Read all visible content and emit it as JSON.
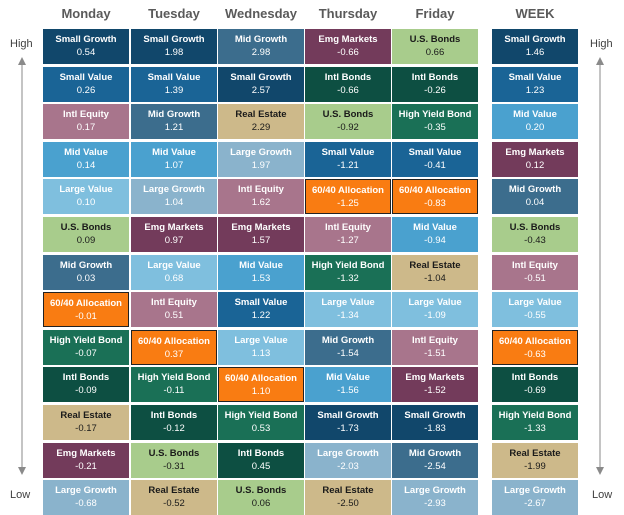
{
  "chart_data": {
    "type": "table",
    "title": "",
    "columns": [
      "Monday",
      "Tuesday",
      "Wednesday",
      "Thursday",
      "Friday",
      "WEEK"
    ],
    "scale_labels": {
      "top": "High",
      "bottom": "Low"
    },
    "highlight_asset": "60/40 Allocation",
    "colors": {
      "Small Growth": "#11476b",
      "Small Value": "#1a6496",
      "Intl Equity": "#a8758c",
      "Mid Value": "#4aa1cf",
      "Large Value": "#7fbfde",
      "U.S. Bonds": "#a8cc8c",
      "Mid Growth": "#3c6d8d",
      "60/40 Allocation": "#f97c12",
      "High Yield Bond": "#1a7056",
      "Intl Bonds": "#0d4f42",
      "Real Estate": "#cdb98a",
      "Emg Markets": "#733b5b",
      "Large Growth": "#8ab3cc"
    },
    "data": [
      [
        {
          "asset": "Small Growth",
          "value": "0.54"
        },
        {
          "asset": "Small Value",
          "value": "0.26"
        },
        {
          "asset": "Intl Equity",
          "value": "0.17"
        },
        {
          "asset": "Mid Value",
          "value": "0.14"
        },
        {
          "asset": "Large Value",
          "value": "0.10"
        },
        {
          "asset": "U.S. Bonds",
          "value": "0.09"
        },
        {
          "asset": "Mid Growth",
          "value": "0.03"
        },
        {
          "asset": "60/40 Allocation",
          "value": "-0.01"
        },
        {
          "asset": "High Yield Bond",
          "value": "-0.07"
        },
        {
          "asset": "Intl Bonds",
          "value": "-0.09"
        },
        {
          "asset": "Real Estate",
          "value": "-0.17"
        },
        {
          "asset": "Emg Markets",
          "value": "-0.21"
        },
        {
          "asset": "Large Growth",
          "value": "-0.68"
        }
      ],
      [
        {
          "asset": "Small Growth",
          "value": "1.98"
        },
        {
          "asset": "Small Value",
          "value": "1.39"
        },
        {
          "asset": "Mid Growth",
          "value": "1.21"
        },
        {
          "asset": "Mid Value",
          "value": "1.07"
        },
        {
          "asset": "Large Growth",
          "value": "1.04"
        },
        {
          "asset": "Emg Markets",
          "value": "0.97"
        },
        {
          "asset": "Large Value",
          "value": "0.68"
        },
        {
          "asset": "Intl Equity",
          "value": "0.51"
        },
        {
          "asset": "60/40 Allocation",
          "value": "0.37"
        },
        {
          "asset": "High Yield Bond",
          "value": "-0.11"
        },
        {
          "asset": "Intl Bonds",
          "value": "-0.12"
        },
        {
          "asset": "U.S. Bonds",
          "value": "-0.31"
        },
        {
          "asset": "Real Estate",
          "value": "-0.52"
        }
      ],
      [
        {
          "asset": "Mid Growth",
          "value": "2.98"
        },
        {
          "asset": "Small Growth",
          "value": "2.57"
        },
        {
          "asset": "Real Estate",
          "value": "2.29"
        },
        {
          "asset": "Large Growth",
          "value": "1.97"
        },
        {
          "asset": "Intl Equity",
          "value": "1.62"
        },
        {
          "asset": "Emg Markets",
          "value": "1.57"
        },
        {
          "asset": "Mid Value",
          "value": "1.53"
        },
        {
          "asset": "Small Value",
          "value": "1.22"
        },
        {
          "asset": "Large Value",
          "value": "1.13"
        },
        {
          "asset": "60/40 Allocation",
          "value": "1.10"
        },
        {
          "asset": "High Yield Bond",
          "value": "0.53"
        },
        {
          "asset": "Intl Bonds",
          "value": "0.45"
        },
        {
          "asset": "U.S. Bonds",
          "value": "0.06"
        }
      ],
      [
        {
          "asset": "Emg Markets",
          "value": "-0.66"
        },
        {
          "asset": "Intl Bonds",
          "value": "-0.66"
        },
        {
          "asset": "U.S. Bonds",
          "value": "-0.92"
        },
        {
          "asset": "Small Value",
          "value": "-1.21"
        },
        {
          "asset": "60/40 Allocation",
          "value": "-1.25"
        },
        {
          "asset": "Intl Equity",
          "value": "-1.27"
        },
        {
          "asset": "High Yield Bond",
          "value": "-1.32"
        },
        {
          "asset": "Large Value",
          "value": "-1.34"
        },
        {
          "asset": "Mid Growth",
          "value": "-1.54"
        },
        {
          "asset": "Mid Value",
          "value": "-1.56"
        },
        {
          "asset": "Small Growth",
          "value": "-1.73"
        },
        {
          "asset": "Large Growth",
          "value": "-2.03"
        },
        {
          "asset": "Real Estate",
          "value": "-2.50"
        }
      ],
      [
        {
          "asset": "U.S. Bonds",
          "value": "0.66"
        },
        {
          "asset": "Intl Bonds",
          "value": "-0.26"
        },
        {
          "asset": "High Yield Bond",
          "value": "-0.35"
        },
        {
          "asset": "Small Value",
          "value": "-0.41"
        },
        {
          "asset": "60/40 Allocation",
          "value": "-0.83"
        },
        {
          "asset": "Mid Value",
          "value": "-0.94"
        },
        {
          "asset": "Real Estate",
          "value": "-1.04"
        },
        {
          "asset": "Large Value",
          "value": "-1.09"
        },
        {
          "asset": "Intl Equity",
          "value": "-1.51"
        },
        {
          "asset": "Emg Markets",
          "value": "-1.52"
        },
        {
          "asset": "Small Growth",
          "value": "-1.83"
        },
        {
          "asset": "Mid Growth",
          "value": "-2.54"
        },
        {
          "asset": "Large Growth",
          "value": "-2.93"
        }
      ],
      [
        {
          "asset": "Small Growth",
          "value": "1.46"
        },
        {
          "asset": "Small Value",
          "value": "1.23"
        },
        {
          "asset": "Mid Value",
          "value": "0.20"
        },
        {
          "asset": "Emg Markets",
          "value": "0.12"
        },
        {
          "asset": "Mid Growth",
          "value": "0.04"
        },
        {
          "asset": "U.S. Bonds",
          "value": "-0.43"
        },
        {
          "asset": "Intl Equity",
          "value": "-0.51"
        },
        {
          "asset": "Large Value",
          "value": "-0.55"
        },
        {
          "asset": "60/40 Allocation",
          "value": "-0.63"
        },
        {
          "asset": "Intl Bonds",
          "value": "-0.69"
        },
        {
          "asset": "High Yield Bond",
          "value": "-1.33"
        },
        {
          "asset": "Real Estate",
          "value": "-1.99"
        },
        {
          "asset": "Large Growth",
          "value": "-2.67"
        }
      ]
    ]
  }
}
